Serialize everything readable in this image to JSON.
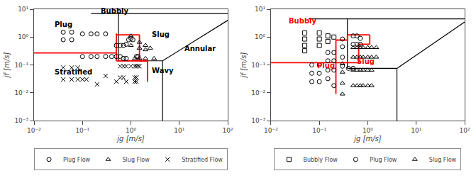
{
  "chart_data": [
    {
      "type": "scatter",
      "log": true,
      "grid": false,
      "legend": "bottom",
      "xlabel": "jg [m/s]",
      "ylabel": "jf [m/s]",
      "xlim": [
        0.01,
        100
      ],
      "ylim": [
        0.001,
        10
      ],
      "xticks": [
        {
          "value": 0.01,
          "label": "10⁻²"
        },
        {
          "value": 0.1,
          "label": "10⁻¹"
        },
        {
          "value": 1,
          "label": "10⁰"
        },
        {
          "value": 10,
          "label": "10¹"
        },
        {
          "value": 100,
          "label": "10²"
        }
      ],
      "yticks": [
        {
          "value": 0.001,
          "label": "10⁻³"
        },
        {
          "value": 0.01,
          "label": "10⁻²"
        },
        {
          "value": 0.1,
          "label": "10⁻¹"
        },
        {
          "value": 1,
          "label": "10⁰"
        },
        {
          "value": 10,
          "label": "10¹"
        }
      ],
      "series": [
        {
          "type": "line",
          "color": "black",
          "x": [
            0.15,
            100,
            null,
            0.55,
            0.55,
            null,
            0.55,
            4.5,
            null,
            4.5,
            100,
            null,
            4.5,
            4.5
          ],
          "values": [
            7.0,
            7.0,
            null,
            0.14,
            7.0,
            null,
            0.14,
            0.14,
            null,
            0.14,
            4.0,
            null,
            0.001,
            0.14
          ]
        },
        {
          "type": "line",
          "color": "red",
          "x": [
            0.01,
            0.5,
            null,
            0.5,
            0.5,
            null,
            0.5,
            0.5,
            null,
            0.5,
            0.5,
            null,
            0.5,
            1.5,
            null,
            1.5,
            1.5,
            null,
            1.5,
            2.2,
            null,
            2.2,
            2.2,
            null,
            0.5,
            2.2
          ],
          "values": [
            0.27,
            0.27,
            null,
            0.14,
            0.27,
            null,
            0.27,
            1.2,
            null,
            1.2,
            1.35,
            null,
            1.2,
            1.2,
            null,
            1.2,
            0.14,
            null,
            0.14,
            0.14,
            null,
            0.14,
            0.025,
            null,
            0.14,
            0.14
          ]
        },
        {
          "type": "scatter",
          "name": "Plug Flow",
          "marker": "circle",
          "color": "black",
          "x": [
            0.04,
            0.06,
            0.04,
            0.06,
            0.1,
            0.15,
            0.2,
            0.3,
            0.1,
            0.15,
            0.2,
            0.3,
            0.4,
            0.5,
            0.6,
            0.7,
            0.8,
            0.5,
            0.6,
            0.7,
            0.8,
            0.9,
            1.0,
            1.1,
            1.3,
            1.4
          ],
          "values": [
            1.5,
            1.5,
            0.8,
            0.8,
            1.3,
            1.3,
            1.3,
            1.3,
            0.2,
            0.2,
            0.2,
            0.2,
            0.2,
            0.2,
            0.2,
            0.17,
            0.17,
            0.5,
            0.5,
            0.5,
            0.55,
            0.8,
            0.9,
            0.8,
            0.2,
            0.2
          ]
        },
        {
          "type": "scatter",
          "name": "Slug Flow",
          "marker": "triangle-up",
          "color": "black",
          "x": [
            1.0,
            1.5,
            2.0,
            2.5,
            1.0,
            1.5,
            2.0,
            1.2,
            1.5,
            2.0,
            3.0
          ],
          "values": [
            1.1,
            0.65,
            0.5,
            0.4,
            0.5,
            0.4,
            0.35,
            0.17,
            0.17,
            0.17,
            0.17
          ]
        },
        {
          "type": "scatter",
          "name": "Stratified Flow",
          "marker": "x",
          "color": "black",
          "x": [
            0.04,
            0.06,
            0.08,
            0.04,
            0.06,
            0.08,
            0.1,
            0.12,
            0.2,
            0.6,
            0.7,
            0.8,
            1.0,
            0.5,
            0.8,
            0.6,
            0.7,
            1.2,
            1.3,
            1.4,
            1.5,
            1.2,
            1.3,
            1.2,
            1.3,
            0.3
          ],
          "values": [
            0.08,
            0.08,
            0.08,
            0.03,
            0.03,
            0.03,
            0.03,
            0.03,
            0.02,
            0.09,
            0.09,
            0.09,
            0.09,
            0.025,
            0.025,
            0.035,
            0.035,
            0.09,
            0.09,
            0.09,
            0.09,
            0.035,
            0.035,
            0.025,
            0.025,
            0.04
          ]
        }
      ],
      "annotations": [
        {
          "text": "Bubbly",
          "x": 0.22,
          "y": 5.5,
          "color": "black"
        },
        {
          "text": "Plug",
          "x": 0.025,
          "y": 1.8,
          "color": "black"
        },
        {
          "text": "Slug",
          "x": 2.5,
          "y": 0.8,
          "color": "black"
        },
        {
          "text": "Annular",
          "x": 12.0,
          "y": 0.25,
          "color": "black"
        },
        {
          "text": "Wavy",
          "x": 2.5,
          "y": 0.04,
          "color": "black"
        },
        {
          "text": "Stratified",
          "x": 0.025,
          "y": 0.035,
          "color": "black"
        }
      ]
    },
    {
      "type": "scatter",
      "log": true,
      "grid": false,
      "legend": "bottom",
      "xlabel": "jg [m/s]",
      "ylabel": "jf [m/s]",
      "xlim": [
        0.01,
        100
      ],
      "ylim": [
        0.001,
        10
      ],
      "xticks": [
        {
          "value": 0.01,
          "label": "10⁻²"
        },
        {
          "value": 0.1,
          "label": "10⁻¹"
        },
        {
          "value": 1,
          "label": "10⁰"
        },
        {
          "value": 10,
          "label": "10¹"
        },
        {
          "value": 100,
          "label": "10²"
        }
      ],
      "yticks": [
        {
          "value": 0.001,
          "label": "10⁻³"
        },
        {
          "value": 0.01,
          "label": "10⁻²"
        },
        {
          "value": 0.1,
          "label": "10⁻¹"
        },
        {
          "value": 1,
          "label": "10⁰"
        },
        {
          "value": 10,
          "label": "10¹"
        }
      ],
      "series": [
        {
          "type": "line",
          "color": "black",
          "x": [
            0.06,
            100,
            null,
            0.38,
            0.38,
            null,
            0.38,
            4.0,
            null,
            4.0,
            100,
            null,
            4.0,
            4.0
          ],
          "values": [
            4.5,
            4.5,
            null,
            0.075,
            4.5,
            null,
            0.075,
            0.075,
            null,
            0.075,
            3.5,
            null,
            0.001,
            0.075
          ]
        },
        {
          "type": "line",
          "color": "red",
          "x": [
            0.01,
            0.22,
            null,
            0.22,
            0.22,
            null,
            0.22,
            0.38,
            null,
            0.38,
            0.38,
            null,
            0.38,
            1.1,
            null,
            1.1,
            1.1,
            null,
            0.65,
            1.1,
            null,
            0.65,
            0.65,
            null,
            0.22,
            0.65,
            null,
            0.22,
            0.22
          ],
          "values": [
            0.12,
            0.12,
            null,
            0.12,
            0.78,
            null,
            0.78,
            0.78,
            null,
            0.78,
            1.2,
            null,
            1.2,
            1.2,
            null,
            1.2,
            0.55,
            null,
            0.55,
            0.55,
            null,
            0.55,
            0.12,
            null,
            0.12,
            0.12,
            null,
            0.009,
            0.12
          ]
        },
        {
          "type": "scatter",
          "name": "Bubbly Flow",
          "marker": "square",
          "color": "black",
          "x": [
            0.05,
            0.05,
            0.05,
            0.05,
            0.1,
            0.1,
            0.1,
            0.15,
            0.15,
            0.2
          ],
          "values": [
            1.4,
            0.85,
            0.5,
            0.32,
            1.4,
            0.85,
            0.5,
            1.1,
            0.7,
            1.0
          ]
        },
        {
          "type": "scatter",
          "name": "Plug Flow",
          "marker": "circle",
          "color": "black",
          "x": [
            0.07,
            0.07,
            0.07,
            0.1,
            0.1,
            0.1,
            0.15,
            0.15,
            0.15,
            0.15,
            0.2,
            0.2,
            0.2,
            0.2,
            0.3,
            0.3,
            0.3,
            0.3,
            0.5,
            0.6,
            0.7,
            0.5,
            0.6,
            0.7,
            0.4,
            0.5
          ],
          "values": [
            0.1,
            0.05,
            0.025,
            0.1,
            0.05,
            0.025,
            0.28,
            0.14,
            0.065,
            0.032,
            0.28,
            0.14,
            0.065,
            0.018,
            0.85,
            0.45,
            0.19,
            0.09,
            1.1,
            1.1,
            0.9,
            0.55,
            0.55,
            0.55,
            0.075,
            0.075
          ]
        },
        {
          "type": "scatter",
          "name": "Slug Flow",
          "marker": "triangle-up",
          "color": "black",
          "x": [
            0.3,
            0.3,
            0.3,
            0.3,
            0.5,
            0.6,
            0.7,
            0.8,
            0.5,
            0.6,
            0.7,
            0.8,
            0.5,
            0.6,
            0.7,
            0.8,
            0.5,
            0.6,
            0.7,
            0.8,
            1.0,
            1.2,
            1.5,
            1.0,
            1.2,
            1.5,
            1.0,
            1.2,
            1.0,
            1.2
          ],
          "values": [
            0.11,
            0.055,
            0.022,
            0.009,
            0.42,
            0.42,
            0.42,
            0.42,
            0.19,
            0.19,
            0.19,
            0.19,
            0.065,
            0.065,
            0.065,
            0.065,
            0.018,
            0.018,
            0.018,
            0.018,
            0.42,
            0.42,
            0.42,
            0.19,
            0.19,
            0.19,
            0.065,
            0.065,
            0.018,
            0.018
          ]
        }
      ],
      "annotations": [
        {
          "text": "Bubbly",
          "x": 0.022,
          "y": 2.5,
          "color": "red"
        },
        {
          "text": "Plug",
          "x": 0.085,
          "y": 0.062,
          "color": "red"
        },
        {
          "text": "Slug",
          "x": 0.55,
          "y": 0.085,
          "color": "red"
        }
      ]
    }
  ]
}
